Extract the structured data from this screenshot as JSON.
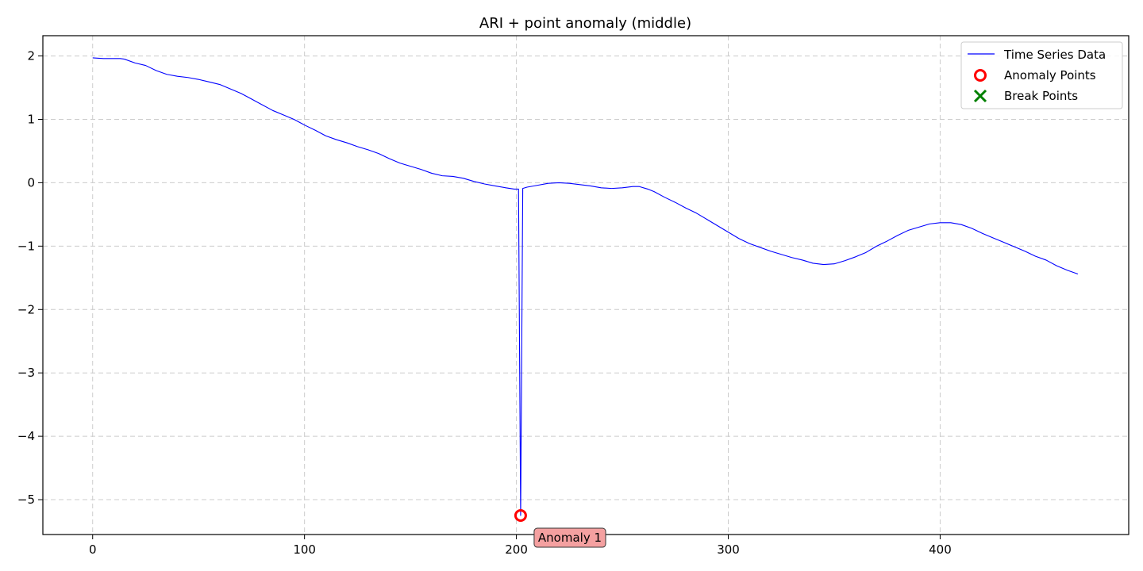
{
  "chart_data": {
    "type": "line",
    "title": "ARI + point anomaly (middle)",
    "xlabel": "",
    "ylabel": "",
    "xlim": [
      -23.5,
      489
    ],
    "ylim": [
      -5.55,
      2.32
    ],
    "x_ticks": [
      0,
      100,
      200,
      300,
      400
    ],
    "y_ticks": [
      2,
      1,
      0,
      -1,
      -2,
      -3,
      -4,
      -5
    ],
    "x_tick_labels": [
      "0",
      "100",
      "200",
      "300",
      "400"
    ],
    "y_tick_labels": [
      "2",
      "1",
      "0",
      "−1",
      "−2",
      "−3",
      "−4",
      "−5"
    ],
    "grid": true,
    "legend_position": "top-right",
    "series": [
      {
        "name": "Time Series Data",
        "color": "#0000ff",
        "points": [
          [
            0,
            1.97
          ],
          [
            5,
            1.96
          ],
          [
            10,
            1.96
          ],
          [
            13,
            1.96
          ],
          [
            15,
            1.95
          ],
          [
            20,
            1.89
          ],
          [
            25,
            1.85
          ],
          [
            30,
            1.77
          ],
          [
            35,
            1.71
          ],
          [
            40,
            1.68
          ],
          [
            45,
            1.66
          ],
          [
            50,
            1.63
          ],
          [
            55,
            1.59
          ],
          [
            60,
            1.55
          ],
          [
            65,
            1.48
          ],
          [
            70,
            1.41
          ],
          [
            75,
            1.32
          ],
          [
            80,
            1.23
          ],
          [
            85,
            1.14
          ],
          [
            90,
            1.07
          ],
          [
            95,
            1.0
          ],
          [
            100,
            0.91
          ],
          [
            105,
            0.83
          ],
          [
            110,
            0.74
          ],
          [
            115,
            0.68
          ],
          [
            120,
            0.63
          ],
          [
            125,
            0.57
          ],
          [
            130,
            0.52
          ],
          [
            135,
            0.46
          ],
          [
            140,
            0.38
          ],
          [
            145,
            0.31
          ],
          [
            150,
            0.26
          ],
          [
            155,
            0.21
          ],
          [
            160,
            0.15
          ],
          [
            165,
            0.11
          ],
          [
            170,
            0.1
          ],
          [
            175,
            0.07
          ],
          [
            180,
            0.02
          ],
          [
            185,
            -0.02
          ],
          [
            190,
            -0.05
          ],
          [
            195,
            -0.08
          ],
          [
            199,
            -0.1
          ],
          [
            201,
            -0.1
          ],
          [
            202,
            -5.25
          ],
          [
            203,
            -0.09
          ],
          [
            205,
            -0.07
          ],
          [
            210,
            -0.04
          ],
          [
            215,
            -0.01
          ],
          [
            220,
            0.0
          ],
          [
            225,
            -0.01
          ],
          [
            230,
            -0.03
          ],
          [
            235,
            -0.05
          ],
          [
            240,
            -0.08
          ],
          [
            245,
            -0.09
          ],
          [
            250,
            -0.08
          ],
          [
            255,
            -0.06
          ],
          [
            258,
            -0.06
          ],
          [
            262,
            -0.1
          ],
          [
            265,
            -0.14
          ],
          [
            270,
            -0.23
          ],
          [
            275,
            -0.31
          ],
          [
            280,
            -0.4
          ],
          [
            285,
            -0.48
          ],
          [
            290,
            -0.58
          ],
          [
            295,
            -0.68
          ],
          [
            300,
            -0.78
          ],
          [
            305,
            -0.88
          ],
          [
            310,
            -0.96
          ],
          [
            315,
            -1.02
          ],
          [
            320,
            -1.08
          ],
          [
            325,
            -1.13
          ],
          [
            330,
            -1.18
          ],
          [
            335,
            -1.22
          ],
          [
            340,
            -1.27
          ],
          [
            345,
            -1.29
          ],
          [
            350,
            -1.28
          ],
          [
            355,
            -1.23
          ],
          [
            360,
            -1.17
          ],
          [
            365,
            -1.1
          ],
          [
            370,
            -1.0
          ],
          [
            375,
            -0.92
          ],
          [
            380,
            -0.83
          ],
          [
            385,
            -0.75
          ],
          [
            390,
            -0.7
          ],
          [
            395,
            -0.65
          ],
          [
            400,
            -0.63
          ],
          [
            405,
            -0.63
          ],
          [
            410,
            -0.66
          ],
          [
            415,
            -0.72
          ],
          [
            420,
            -0.8
          ],
          [
            425,
            -0.87
          ],
          [
            430,
            -0.94
          ],
          [
            435,
            -1.01
          ],
          [
            440,
            -1.08
          ],
          [
            445,
            -1.16
          ],
          [
            450,
            -1.22
          ],
          [
            455,
            -1.31
          ],
          [
            460,
            -1.38
          ],
          [
            465,
            -1.44
          ]
        ]
      }
    ],
    "anomaly_points": [
      {
        "label": "Anomaly 1",
        "x": 202,
        "y": -5.25
      }
    ],
    "break_points": [],
    "legend": [
      {
        "label": "Time Series Data",
        "marker": "line",
        "color": "#0000ff"
      },
      {
        "label": "Anomaly Points",
        "marker": "circle",
        "color": "#ff0000"
      },
      {
        "label": "Break Points",
        "marker": "x",
        "color": "#008000"
      }
    ]
  }
}
